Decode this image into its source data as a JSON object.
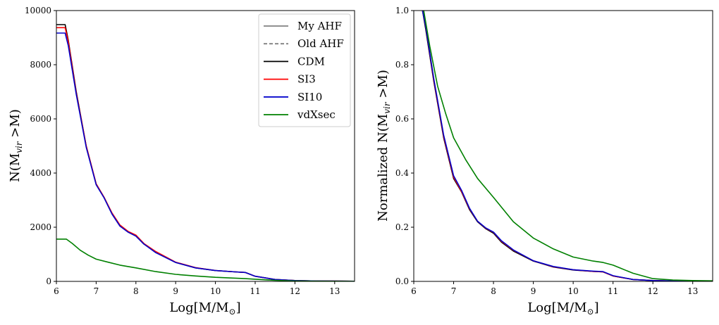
{
  "figure": {
    "left": {
      "xlabel": "Log[M/M⊙]",
      "ylabel": "N(M_vir >M)",
      "xlim": [
        6,
        13.5
      ],
      "ylim": [
        0,
        10000
      ],
      "xticks": [
        "6",
        "7",
        "8",
        "9",
        "10",
        "11",
        "12",
        "13"
      ],
      "yticks": [
        "0",
        "2000",
        "4000",
        "6000",
        "8000",
        "10000"
      ]
    },
    "right": {
      "xlabel": "Log[M/M⊙]",
      "ylabel": "Normalized N(M_vir >M)",
      "xlim": [
        6,
        13.5
      ],
      "ylim": [
        0,
        1.0
      ],
      "xticks": [
        "6",
        "7",
        "8",
        "9",
        "10",
        "11",
        "12",
        "13"
      ],
      "yticks": [
        "0.0",
        "0.2",
        "0.4",
        "0.6",
        "0.8",
        "1.0"
      ]
    },
    "legend": [
      {
        "label": "My AHF",
        "color": "#808080",
        "style": "solid"
      },
      {
        "label": "Old AHF",
        "color": "#808080",
        "style": "dashed"
      },
      {
        "label": "CDM",
        "color": "#000000",
        "style": "solid"
      },
      {
        "label": "SI3",
        "color": "#ff0000",
        "style": "solid"
      },
      {
        "label": "SI10",
        "color": "#0000cc",
        "style": "solid"
      },
      {
        "label": "vdXsec",
        "color": "#008000",
        "style": "solid"
      }
    ]
  },
  "chart_data": [
    {
      "type": "line",
      "panel": "left",
      "xlabel": "Log[M/M⊙]",
      "ylabel": "N(M_vir >M)",
      "xlim": [
        6,
        13.5
      ],
      "ylim": [
        0,
        10000
      ],
      "series": [
        {
          "name": "CDM",
          "color": "#000000",
          "x": [
            6.0,
            6.22,
            6.3,
            6.5,
            6.75,
            7.0,
            7.2,
            7.4,
            7.6,
            7.8,
            8.0,
            8.2,
            8.5,
            9.0,
            9.5,
            10.0,
            10.5,
            10.75,
            11.0,
            11.5,
            12.0,
            12.5,
            13.0,
            13.5
          ],
          "y": [
            9480,
            9480,
            8900,
            7000,
            5000,
            3600,
            3100,
            2500,
            2050,
            1830,
            1680,
            1380,
            1080,
            700,
            500,
            400,
            350,
            330,
            190,
            70,
            30,
            15,
            10,
            5
          ]
        },
        {
          "name": "SI3",
          "color": "#ff0000",
          "x": [
            6.0,
            6.22,
            6.3,
            6.5,
            6.75,
            7.0,
            7.2,
            7.4,
            7.6,
            7.8,
            8.0,
            8.2,
            8.5,
            9.0,
            9.5,
            10.0,
            10.5,
            10.75,
            11.0,
            11.5,
            12.0,
            12.5,
            13.0,
            13.5
          ],
          "y": [
            9370,
            9370,
            8850,
            6950,
            5000,
            3600,
            3100,
            2520,
            2080,
            1850,
            1710,
            1400,
            1100,
            710,
            510,
            400,
            350,
            330,
            190,
            70,
            30,
            15,
            10,
            5
          ]
        },
        {
          "name": "SI10",
          "color": "#0000cc",
          "x": [
            6.0,
            6.22,
            6.3,
            6.5,
            6.75,
            7.0,
            7.2,
            7.4,
            7.6,
            7.8,
            8.0,
            8.2,
            8.5,
            9.0,
            9.5,
            10.0,
            10.5,
            10.75,
            11.0,
            11.5,
            12.0,
            12.5,
            13.0,
            13.5
          ],
          "y": [
            9170,
            9170,
            8700,
            6900,
            4950,
            3570,
            3080,
            2480,
            2040,
            1820,
            1670,
            1380,
            1060,
            700,
            500,
            400,
            350,
            330,
            190,
            70,
            30,
            15,
            10,
            5
          ]
        },
        {
          "name": "vdXsec",
          "color": "#008000",
          "x": [
            6.0,
            6.25,
            6.4,
            6.6,
            6.8,
            7.0,
            7.3,
            7.6,
            8.0,
            8.5,
            9.0,
            9.5,
            10.0,
            10.5,
            10.75,
            11.0,
            11.5,
            12.0,
            12.5,
            13.0,
            13.5
          ],
          "y": [
            1560,
            1560,
            1400,
            1150,
            970,
            820,
            710,
            600,
            500,
            360,
            260,
            200,
            150,
            120,
            100,
            80,
            40,
            15,
            8,
            5,
            3
          ]
        }
      ]
    },
    {
      "type": "line",
      "panel": "right",
      "xlabel": "Log[M/M⊙]",
      "ylabel": "Normalized N(M_vir >M)",
      "xlim": [
        6,
        13.5
      ],
      "ylim": [
        0,
        1.0
      ],
      "series": [
        {
          "name": "CDM",
          "color": "#000000",
          "x": [
            6.22,
            6.3,
            6.5,
            6.75,
            7.0,
            7.2,
            7.4,
            7.6,
            7.8,
            8.0,
            8.2,
            8.5,
            9.0,
            9.5,
            10.0,
            10.5,
            10.75,
            11.0,
            11.5,
            12.0,
            12.5,
            13.0,
            13.5
          ],
          "y": [
            1.0,
            0.93,
            0.74,
            0.53,
            0.38,
            0.33,
            0.265,
            0.22,
            0.195,
            0.178,
            0.145,
            0.112,
            0.075,
            0.053,
            0.042,
            0.037,
            0.035,
            0.02,
            0.007,
            0.003,
            0.0015,
            0.001,
            0.0005
          ]
        },
        {
          "name": "SI3",
          "color": "#ff0000",
          "x": [
            6.22,
            6.3,
            6.5,
            6.75,
            7.0,
            7.2,
            7.4,
            7.6,
            7.8,
            8.0,
            8.2,
            8.5,
            9.0,
            9.5,
            10.0,
            10.5,
            10.75,
            11.0,
            11.5,
            12.0,
            12.5,
            13.0,
            13.5
          ],
          "y": [
            1.0,
            0.94,
            0.745,
            0.535,
            0.385,
            0.332,
            0.268,
            0.222,
            0.197,
            0.181,
            0.148,
            0.115,
            0.076,
            0.054,
            0.043,
            0.037,
            0.035,
            0.02,
            0.007,
            0.003,
            0.0015,
            0.001,
            0.0005
          ]
        },
        {
          "name": "SI10",
          "color": "#0000cc",
          "x": [
            6.22,
            6.3,
            6.5,
            6.75,
            7.0,
            7.2,
            7.4,
            7.6,
            7.8,
            8.0,
            8.2,
            8.5,
            9.0,
            9.5,
            10.0,
            10.5,
            10.75,
            11.0,
            11.5,
            12.0,
            12.5,
            13.0,
            13.5
          ],
          "y": [
            1.0,
            0.94,
            0.75,
            0.54,
            0.39,
            0.336,
            0.27,
            0.222,
            0.198,
            0.182,
            0.15,
            0.116,
            0.076,
            0.055,
            0.043,
            0.038,
            0.036,
            0.021,
            0.007,
            0.003,
            0.0015,
            0.001,
            0.0005
          ]
        },
        {
          "name": "vdXsec",
          "color": "#008000",
          "x": [
            6.25,
            6.4,
            6.6,
            6.8,
            7.0,
            7.3,
            7.6,
            8.0,
            8.5,
            9.0,
            9.5,
            10.0,
            10.5,
            10.75,
            11.0,
            11.5,
            12.0,
            12.5,
            13.0,
            13.5
          ],
          "y": [
            1.0,
            0.87,
            0.72,
            0.62,
            0.53,
            0.45,
            0.38,
            0.31,
            0.22,
            0.16,
            0.12,
            0.09,
            0.075,
            0.07,
            0.06,
            0.03,
            0.01,
            0.005,
            0.003,
            0.002
          ]
        }
      ]
    }
  ]
}
